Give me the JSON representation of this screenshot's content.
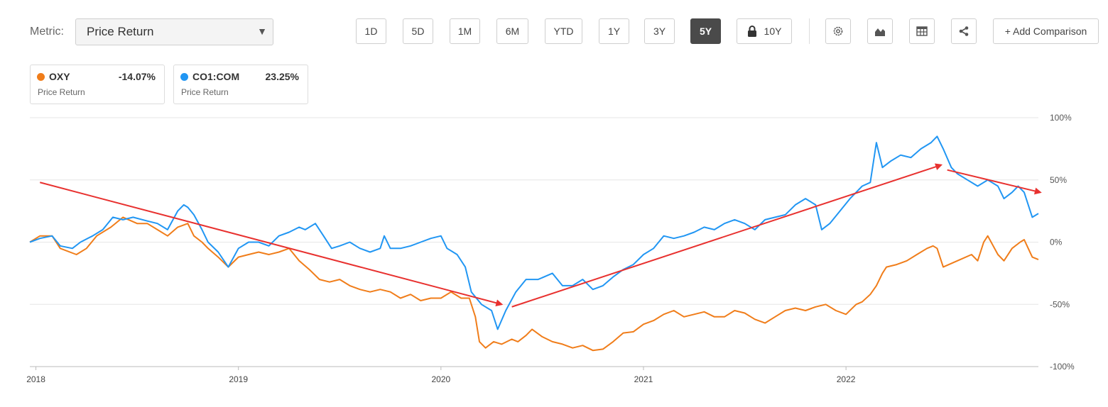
{
  "toolbar": {
    "metric_label": "Metric:",
    "metric_value": "Price Return",
    "ranges": [
      "1D",
      "5D",
      "1M",
      "6M",
      "YTD",
      "1Y",
      "3Y",
      "5Y",
      "10Y"
    ],
    "active_range": "5Y",
    "add_comparison": "+ Add Comparison"
  },
  "cards": [
    {
      "symbol": "OXY",
      "value": "-14.07%",
      "sub": "Price Return",
      "color": "#f07d1a"
    },
    {
      "symbol": "CO1:COM",
      "value": "23.25%",
      "sub": "Price Return",
      "color": "#2196f3"
    }
  ],
  "chart_data": {
    "type": "line",
    "title": "",
    "xlabel": "",
    "ylabel": "",
    "x_ticks": [
      "2018",
      "2019",
      "2020",
      "2021",
      "2022"
    ],
    "y_ticks": [
      "100%",
      "50%",
      "0%",
      "-50%",
      "-100%"
    ],
    "ylim": [
      -100,
      100
    ],
    "xlim": [
      2017.97,
      2022.95
    ],
    "grid": true,
    "series": [
      {
        "name": "OXY",
        "color": "#f07d1a",
        "points": [
          [
            2017.97,
            0
          ],
          [
            2018.02,
            5
          ],
          [
            2018.08,
            5
          ],
          [
            2018.12,
            -5
          ],
          [
            2018.2,
            -10
          ],
          [
            2018.25,
            -5
          ],
          [
            2018.3,
            5
          ],
          [
            2018.37,
            12
          ],
          [
            2018.43,
            20
          ],
          [
            2018.5,
            15
          ],
          [
            2018.55,
            15
          ],
          [
            2018.6,
            10
          ],
          [
            2018.65,
            5
          ],
          [
            2018.7,
            12
          ],
          [
            2018.75,
            15
          ],
          [
            2018.78,
            5
          ],
          [
            2018.82,
            0
          ],
          [
            2018.85,
            -5
          ],
          [
            2018.9,
            -12
          ],
          [
            2018.95,
            -20
          ],
          [
            2019.0,
            -12
          ],
          [
            2019.05,
            -10
          ],
          [
            2019.1,
            -8
          ],
          [
            2019.15,
            -10
          ],
          [
            2019.2,
            -8
          ],
          [
            2019.25,
            -5
          ],
          [
            2019.3,
            -15
          ],
          [
            2019.35,
            -22
          ],
          [
            2019.4,
            -30
          ],
          [
            2019.45,
            -32
          ],
          [
            2019.5,
            -30
          ],
          [
            2019.55,
            -35
          ],
          [
            2019.6,
            -38
          ],
          [
            2019.65,
            -40
          ],
          [
            2019.7,
            -38
          ],
          [
            2019.75,
            -40
          ],
          [
            2019.8,
            -45
          ],
          [
            2019.85,
            -42
          ],
          [
            2019.9,
            -47
          ],
          [
            2019.95,
            -45
          ],
          [
            2020.0,
            -45
          ],
          [
            2020.05,
            -40
          ],
          [
            2020.1,
            -45
          ],
          [
            2020.14,
            -45
          ],
          [
            2020.17,
            -60
          ],
          [
            2020.19,
            -80
          ],
          [
            2020.22,
            -85
          ],
          [
            2020.26,
            -80
          ],
          [
            2020.3,
            -82
          ],
          [
            2020.35,
            -78
          ],
          [
            2020.38,
            -80
          ],
          [
            2020.42,
            -75
          ],
          [
            2020.45,
            -70
          ],
          [
            2020.5,
            -76
          ],
          [
            2020.55,
            -80
          ],
          [
            2020.6,
            -82
          ],
          [
            2020.65,
            -85
          ],
          [
            2020.7,
            -83
          ],
          [
            2020.75,
            -87
          ],
          [
            2020.8,
            -86
          ],
          [
            2020.85,
            -80
          ],
          [
            2020.9,
            -73
          ],
          [
            2020.95,
            -72
          ],
          [
            2021.0,
            -66
          ],
          [
            2021.05,
            -63
          ],
          [
            2021.1,
            -58
          ],
          [
            2021.15,
            -55
          ],
          [
            2021.2,
            -60
          ],
          [
            2021.25,
            -58
          ],
          [
            2021.3,
            -56
          ],
          [
            2021.35,
            -60
          ],
          [
            2021.4,
            -60
          ],
          [
            2021.45,
            -55
          ],
          [
            2021.5,
            -57
          ],
          [
            2021.55,
            -62
          ],
          [
            2021.6,
            -65
          ],
          [
            2021.65,
            -60
          ],
          [
            2021.7,
            -55
          ],
          [
            2021.75,
            -53
          ],
          [
            2021.8,
            -55
          ],
          [
            2021.85,
            -52
          ],
          [
            2021.9,
            -50
          ],
          [
            2021.95,
            -55
          ],
          [
            2022.0,
            -58
          ],
          [
            2022.05,
            -50
          ],
          [
            2022.08,
            -48
          ],
          [
            2022.12,
            -42
          ],
          [
            2022.15,
            -35
          ],
          [
            2022.18,
            -25
          ],
          [
            2022.2,
            -20
          ],
          [
            2022.25,
            -18
          ],
          [
            2022.3,
            -15
          ],
          [
            2022.35,
            -10
          ],
          [
            2022.4,
            -5
          ],
          [
            2022.43,
            -3
          ],
          [
            2022.45,
            -5
          ],
          [
            2022.48,
            -20
          ],
          [
            2022.55,
            -15
          ],
          [
            2022.62,
            -10
          ],
          [
            2022.65,
            -15
          ],
          [
            2022.68,
            0
          ],
          [
            2022.7,
            5
          ],
          [
            2022.75,
            -10
          ],
          [
            2022.78,
            -15
          ],
          [
            2022.82,
            -5
          ],
          [
            2022.86,
            0
          ],
          [
            2022.88,
            2
          ],
          [
            2022.9,
            -5
          ],
          [
            2022.92,
            -12
          ],
          [
            2022.95,
            -14
          ]
        ]
      },
      {
        "name": "CO1:COM",
        "color": "#2196f3",
        "points": [
          [
            2017.97,
            0
          ],
          [
            2018.02,
            3
          ],
          [
            2018.08,
            5
          ],
          [
            2018.12,
            -3
          ],
          [
            2018.18,
            -5
          ],
          [
            2018.22,
            0
          ],
          [
            2018.28,
            5
          ],
          [
            2018.33,
            10
          ],
          [
            2018.38,
            20
          ],
          [
            2018.43,
            18
          ],
          [
            2018.48,
            20
          ],
          [
            2018.55,
            17
          ],
          [
            2018.6,
            15
          ],
          [
            2018.65,
            10
          ],
          [
            2018.7,
            25
          ],
          [
            2018.73,
            30
          ],
          [
            2018.75,
            28
          ],
          [
            2018.78,
            22
          ],
          [
            2018.82,
            10
          ],
          [
            2018.85,
            0
          ],
          [
            2018.9,
            -8
          ],
          [
            2018.95,
            -20
          ],
          [
            2019.0,
            -5
          ],
          [
            2019.05,
            0
          ],
          [
            2019.1,
            0
          ],
          [
            2019.15,
            -3
          ],
          [
            2019.2,
            5
          ],
          [
            2019.25,
            8
          ],
          [
            2019.3,
            12
          ],
          [
            2019.33,
            10
          ],
          [
            2019.38,
            15
          ],
          [
            2019.42,
            5
          ],
          [
            2019.46,
            -5
          ],
          [
            2019.5,
            -3
          ],
          [
            2019.55,
            0
          ],
          [
            2019.6,
            -5
          ],
          [
            2019.65,
            -8
          ],
          [
            2019.7,
            -5
          ],
          [
            2019.72,
            5
          ],
          [
            2019.75,
            -5
          ],
          [
            2019.8,
            -5
          ],
          [
            2019.85,
            -3
          ],
          [
            2019.9,
            0
          ],
          [
            2019.95,
            3
          ],
          [
            2020.0,
            5
          ],
          [
            2020.03,
            -5
          ],
          [
            2020.08,
            -10
          ],
          [
            2020.12,
            -20
          ],
          [
            2020.15,
            -40
          ],
          [
            2020.2,
            -50
          ],
          [
            2020.25,
            -55
          ],
          [
            2020.28,
            -70
          ],
          [
            2020.32,
            -55
          ],
          [
            2020.37,
            -40
          ],
          [
            2020.42,
            -30
          ],
          [
            2020.48,
            -30
          ],
          [
            2020.55,
            -25
          ],
          [
            2020.6,
            -35
          ],
          [
            2020.65,
            -35
          ],
          [
            2020.7,
            -30
          ],
          [
            2020.75,
            -38
          ],
          [
            2020.8,
            -35
          ],
          [
            2020.85,
            -28
          ],
          [
            2020.9,
            -22
          ],
          [
            2020.95,
            -18
          ],
          [
            2021.0,
            -10
          ],
          [
            2021.05,
            -5
          ],
          [
            2021.1,
            5
          ],
          [
            2021.15,
            3
          ],
          [
            2021.2,
            5
          ],
          [
            2021.25,
            8
          ],
          [
            2021.3,
            12
          ],
          [
            2021.35,
            10
          ],
          [
            2021.4,
            15
          ],
          [
            2021.45,
            18
          ],
          [
            2021.5,
            15
          ],
          [
            2021.55,
            10
          ],
          [
            2021.6,
            18
          ],
          [
            2021.65,
            20
          ],
          [
            2021.7,
            22
          ],
          [
            2021.75,
            30
          ],
          [
            2021.8,
            35
          ],
          [
            2021.85,
            30
          ],
          [
            2021.88,
            10
          ],
          [
            2021.92,
            15
          ],
          [
            2021.97,
            25
          ],
          [
            2022.02,
            35
          ],
          [
            2022.08,
            45
          ],
          [
            2022.12,
            48
          ],
          [
            2022.15,
            80
          ],
          [
            2022.18,
            60
          ],
          [
            2022.22,
            65
          ],
          [
            2022.27,
            70
          ],
          [
            2022.32,
            68
          ],
          [
            2022.37,
            75
          ],
          [
            2022.42,
            80
          ],
          [
            2022.45,
            85
          ],
          [
            2022.48,
            75
          ],
          [
            2022.52,
            60
          ],
          [
            2022.55,
            55
          ],
          [
            2022.6,
            50
          ],
          [
            2022.65,
            45
          ],
          [
            2022.7,
            50
          ],
          [
            2022.75,
            45
          ],
          [
            2022.78,
            35
          ],
          [
            2022.82,
            40
          ],
          [
            2022.85,
            45
          ],
          [
            2022.88,
            40
          ],
          [
            2022.9,
            30
          ],
          [
            2022.92,
            20
          ],
          [
            2022.95,
            23
          ]
        ]
      }
    ],
    "annotations": [
      {
        "type": "arrow",
        "color": "#e8312f",
        "from": [
          2018.02,
          48
        ],
        "to": [
          2020.3,
          -50
        ]
      },
      {
        "type": "arrow",
        "color": "#e8312f",
        "from": [
          2020.35,
          -52
        ],
        "to": [
          2022.47,
          62
        ]
      },
      {
        "type": "arrow",
        "color": "#e8312f",
        "from": [
          2022.5,
          58
        ],
        "to": [
          2022.96,
          40
        ]
      }
    ]
  }
}
